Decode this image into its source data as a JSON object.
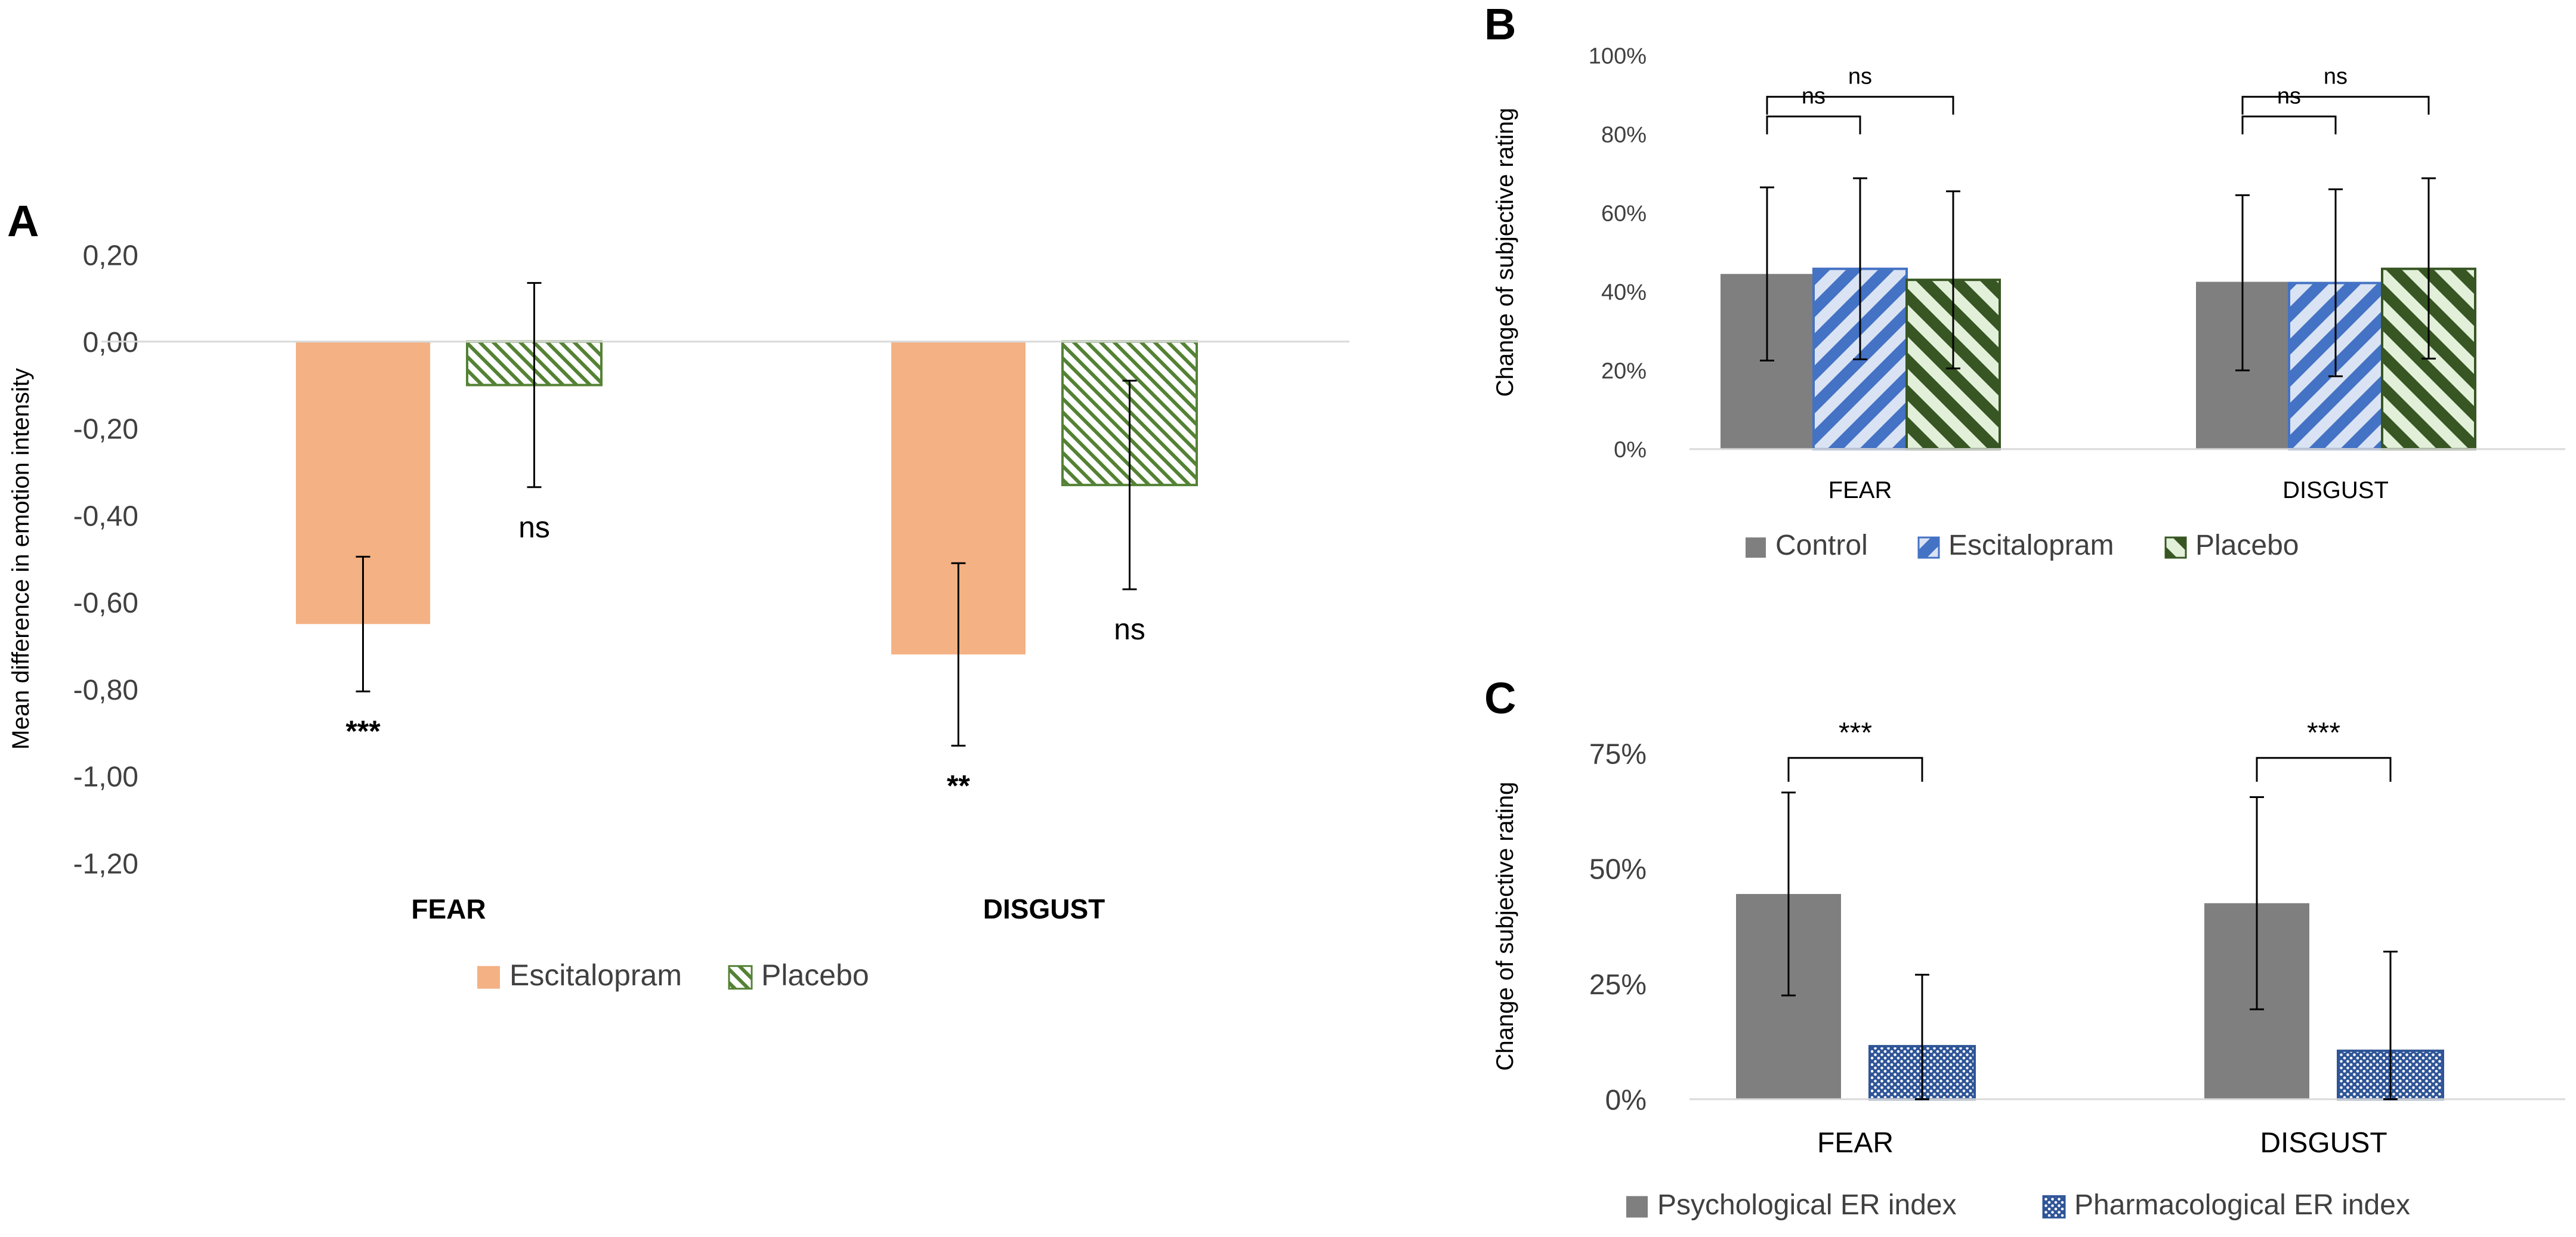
{
  "figure": {
    "panels": {
      "A": {
        "letter": "A"
      },
      "B": {
        "letter": "B"
      },
      "C": {
        "letter": "C"
      }
    }
  },
  "chart_data": [
    {
      "panel": "A",
      "type": "bar",
      "ylabel": "Mean difference in emotion intensity",
      "xlabel": "",
      "ylim": [
        -1.2,
        0.2
      ],
      "yticks": [
        0.2,
        0.0,
        -0.2,
        -0.4,
        -0.6,
        -0.8,
        -1.0,
        -1.2
      ],
      "ytick_labels": [
        "0,20",
        "0,00",
        "-0,20",
        "-0,40",
        "-0,60",
        "-0,80",
        "-1,00",
        "-1,20"
      ],
      "categories": [
        "FEAR",
        "DISGUST"
      ],
      "series": [
        {
          "name": "Escitalopram",
          "values": [
            -0.65,
            -0.72
          ],
          "err_low": [
            -0.805,
            -0.93
          ],
          "err_high": [
            -0.495,
            -0.51
          ],
          "color": "#f4b183",
          "pattern": "solid"
        },
        {
          "name": "Placebo",
          "values": [
            -0.1,
            -0.33
          ],
          "err_low": [
            -0.335,
            -0.57
          ],
          "err_high": [
            0.135,
            -0.09
          ],
          "color": "#548235",
          "pattern": "fine-hatch"
        }
      ],
      "annotations": [
        {
          "category": 0,
          "series": 0,
          "text": "***"
        },
        {
          "category": 0,
          "series": 1,
          "text": "ns"
        },
        {
          "category": 1,
          "series": 0,
          "text": "**"
        },
        {
          "category": 1,
          "series": 1,
          "text": "ns"
        }
      ],
      "legend_position": "bottom",
      "grid": false
    },
    {
      "panel": "B",
      "type": "bar",
      "ylabel": "Change of subjective rating",
      "xlabel": "",
      "ylim": [
        0,
        100
      ],
      "yticks": [
        0,
        20,
        40,
        60,
        80,
        100
      ],
      "ytick_labels": [
        "0%",
        "20%",
        "40%",
        "60%",
        "80%",
        "100%"
      ],
      "categories": [
        "FEAR",
        "DISGUST"
      ],
      "series": [
        {
          "name": "Control",
          "values": [
            44.5,
            42.5
          ],
          "err_low": [
            22.5,
            20
          ],
          "err_high": [
            66.5,
            64.5
          ],
          "color": "#7f7f7f",
          "pattern": "solid"
        },
        {
          "name": "Escitalopram",
          "values": [
            45.8,
            42.2
          ],
          "err_low": [
            22.8,
            18.5
          ],
          "err_high": [
            68.8,
            66
          ],
          "color": "#4472c4",
          "pattern": "stripe-blue"
        },
        {
          "name": "Placebo",
          "values": [
            43,
            45.8
          ],
          "err_low": [
            20.5,
            23
          ],
          "err_high": [
            65.5,
            68.8
          ],
          "color": "#375623",
          "pattern": "stripe-green"
        }
      ],
      "brackets": [
        {
          "category": 0,
          "from_series": 0,
          "to_series": 1,
          "y": 84.5,
          "text": "ns"
        },
        {
          "category": 0,
          "from_series": 0,
          "to_series": 2,
          "y": 89.5,
          "text": "ns"
        },
        {
          "category": 1,
          "from_series": 0,
          "to_series": 1,
          "y": 84.5,
          "text": "ns"
        },
        {
          "category": 1,
          "from_series": 0,
          "to_series": 2,
          "y": 89.5,
          "text": "ns"
        }
      ],
      "legend_position": "bottom",
      "grid": false
    },
    {
      "panel": "C",
      "type": "bar",
      "ylabel": "Change of subjective rating",
      "xlabel": "",
      "ylim": [
        0,
        75
      ],
      "yticks": [
        0,
        25,
        50,
        75
      ],
      "ytick_labels": [
        "0%",
        "25%",
        "50%",
        "75%"
      ],
      "categories": [
        "FEAR",
        "DISGUST"
      ],
      "series": [
        {
          "name": "Psychological ER index",
          "values": [
            44.5,
            42.5
          ],
          "err_low": [
            22.5,
            19.5
          ],
          "err_high": [
            66.5,
            65.5
          ],
          "color": "#7f7f7f",
          "pattern": "solid"
        },
        {
          "name": "Pharmacological ER index",
          "values": [
            11.5,
            10.5
          ],
          "err_low": [
            0,
            0
          ],
          "err_high": [
            27,
            32
          ],
          "color": "#2f5597",
          "pattern": "dots-blue"
        }
      ],
      "brackets": [
        {
          "category": 0,
          "from_series": 0,
          "to_series": 1,
          "y": 74,
          "text": "***"
        },
        {
          "category": 1,
          "from_series": 0,
          "to_series": 1,
          "y": 74,
          "text": "***"
        }
      ],
      "legend_position": "bottom",
      "grid": false
    }
  ]
}
